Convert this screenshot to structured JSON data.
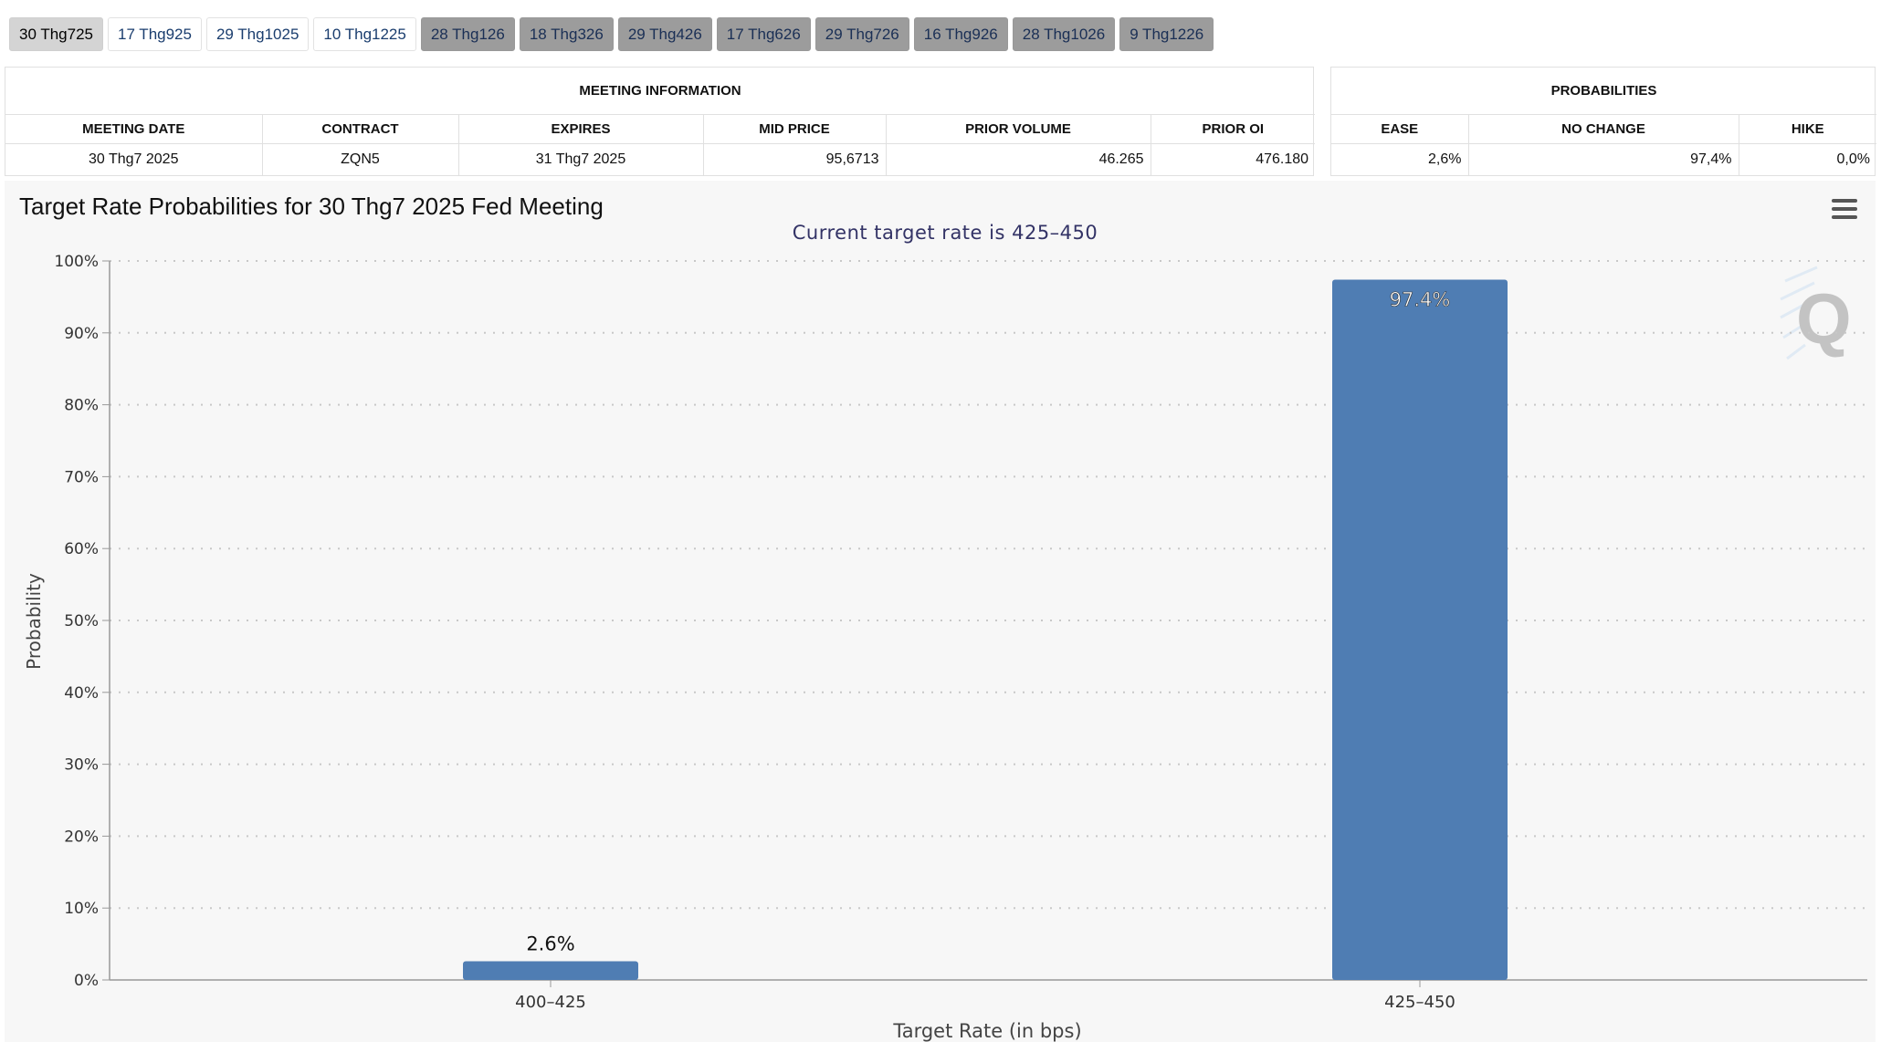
{
  "tabs": [
    {
      "label": "30 Thg725",
      "style": "active"
    },
    {
      "label": "17 Thg925",
      "style": "light"
    },
    {
      "label": "29 Thg1025",
      "style": "light"
    },
    {
      "label": "10 Thg1225",
      "style": "light"
    },
    {
      "label": "28 Thg126",
      "style": "dark"
    },
    {
      "label": "18 Thg326",
      "style": "dark"
    },
    {
      "label": "29 Thg426",
      "style": "dark"
    },
    {
      "label": "17 Thg626",
      "style": "dark"
    },
    {
      "label": "29 Thg726",
      "style": "dark"
    },
    {
      "label": "16 Thg926",
      "style": "dark"
    },
    {
      "label": "28 Thg1026",
      "style": "dark"
    },
    {
      "label": "9 Thg1226",
      "style": "dark"
    }
  ],
  "meeting_info": {
    "caption": "MEETING INFORMATION",
    "headers": [
      "MEETING DATE",
      "CONTRACT",
      "EXPIRES",
      "MID PRICE",
      "PRIOR VOLUME",
      "PRIOR OI"
    ],
    "row": {
      "meeting_date": "30 Thg7 2025",
      "contract": "ZQN5",
      "expires": "31 Thg7 2025",
      "mid_price": "95,6713",
      "prior_volume": "46.265",
      "prior_oi": "476.180"
    }
  },
  "probabilities": {
    "caption": "PROBABILITIES",
    "headers": [
      "EASE",
      "NO CHANGE",
      "HIKE"
    ],
    "row": {
      "ease": "2,6%",
      "no_change": "97,4%",
      "hike": "0,0%"
    }
  },
  "chart": {
    "title": "Target Rate Probabilities for 30 Thg7 2025 Fed Meeting",
    "menu_icon": "hamburger-menu-icon",
    "watermark_icon": "q-logo-icon"
  },
  "chart_data": {
    "type": "bar",
    "title": "Target Rate Probabilities for 30 Thg7 2025 Fed Meeting",
    "subtitle": "Current target rate is 425–450",
    "xlabel": "Target Rate (in bps)",
    "ylabel": "Probability",
    "categories": [
      "400–425",
      "425–450"
    ],
    "values": [
      2.6,
      97.4
    ],
    "data_labels": [
      "2.6%",
      "97.4%"
    ],
    "ylim": [
      0,
      100
    ],
    "yticks": [
      "0%",
      "10%",
      "20%",
      "30%",
      "40%",
      "50%",
      "60%",
      "70%",
      "80%",
      "90%",
      "100%"
    ],
    "bar_color": "#4f7db3",
    "grid": true,
    "legend": "none"
  }
}
